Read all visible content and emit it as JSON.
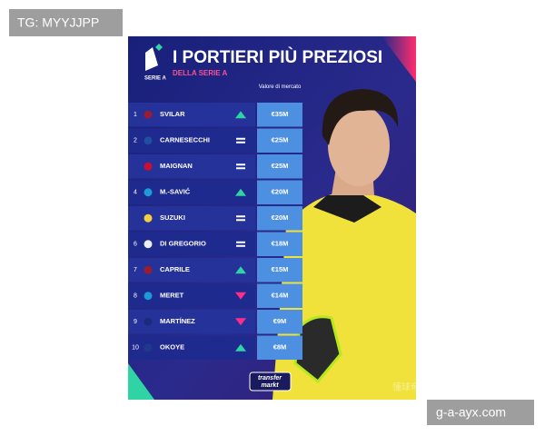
{
  "watermark_top": "TG: MYYJJPP",
  "watermark_bottom": "g-a-ayx.com",
  "header": {
    "logo_text": "SERIE A",
    "title": "I PORTIERI PIÙ PREZIOSI",
    "subtitle": "DELLA SERIE A",
    "column_header": "Valore di mercato"
  },
  "table": {
    "rows": [
      {
        "rank": "1",
        "name": "SVILAR",
        "trend": "up",
        "value": "€35M"
      },
      {
        "rank": "2",
        "name": "CARNESECCHI",
        "trend": "same",
        "value": "€25M"
      },
      {
        "rank": null,
        "name": "MAIGNAN",
        "trend": "same",
        "value": "€25M"
      },
      {
        "rank": "4",
        "name": "M.-SAVIĆ",
        "trend": "up",
        "value": "€20M"
      },
      {
        "rank": null,
        "name": "SUZUKI",
        "trend": "same",
        "value": "€20M"
      },
      {
        "rank": "6",
        "name": "DI GREGORIO",
        "trend": "same",
        "value": "€18M"
      },
      {
        "rank": "7",
        "name": "CAPRILE",
        "trend": "up",
        "value": "€15M"
      },
      {
        "rank": "8",
        "name": "MERET",
        "trend": "down",
        "value": "€14M"
      },
      {
        "rank": "9",
        "name": "MARTÍNEZ",
        "trend": "down",
        "value": "€9M"
      },
      {
        "rank": "10",
        "name": "OKOYE",
        "trend": "up",
        "value": "€8M"
      }
    ]
  },
  "footer": {
    "brand_top": "transfer",
    "brand_bottom": "markt",
    "source_mark": "懂球帝"
  }
}
